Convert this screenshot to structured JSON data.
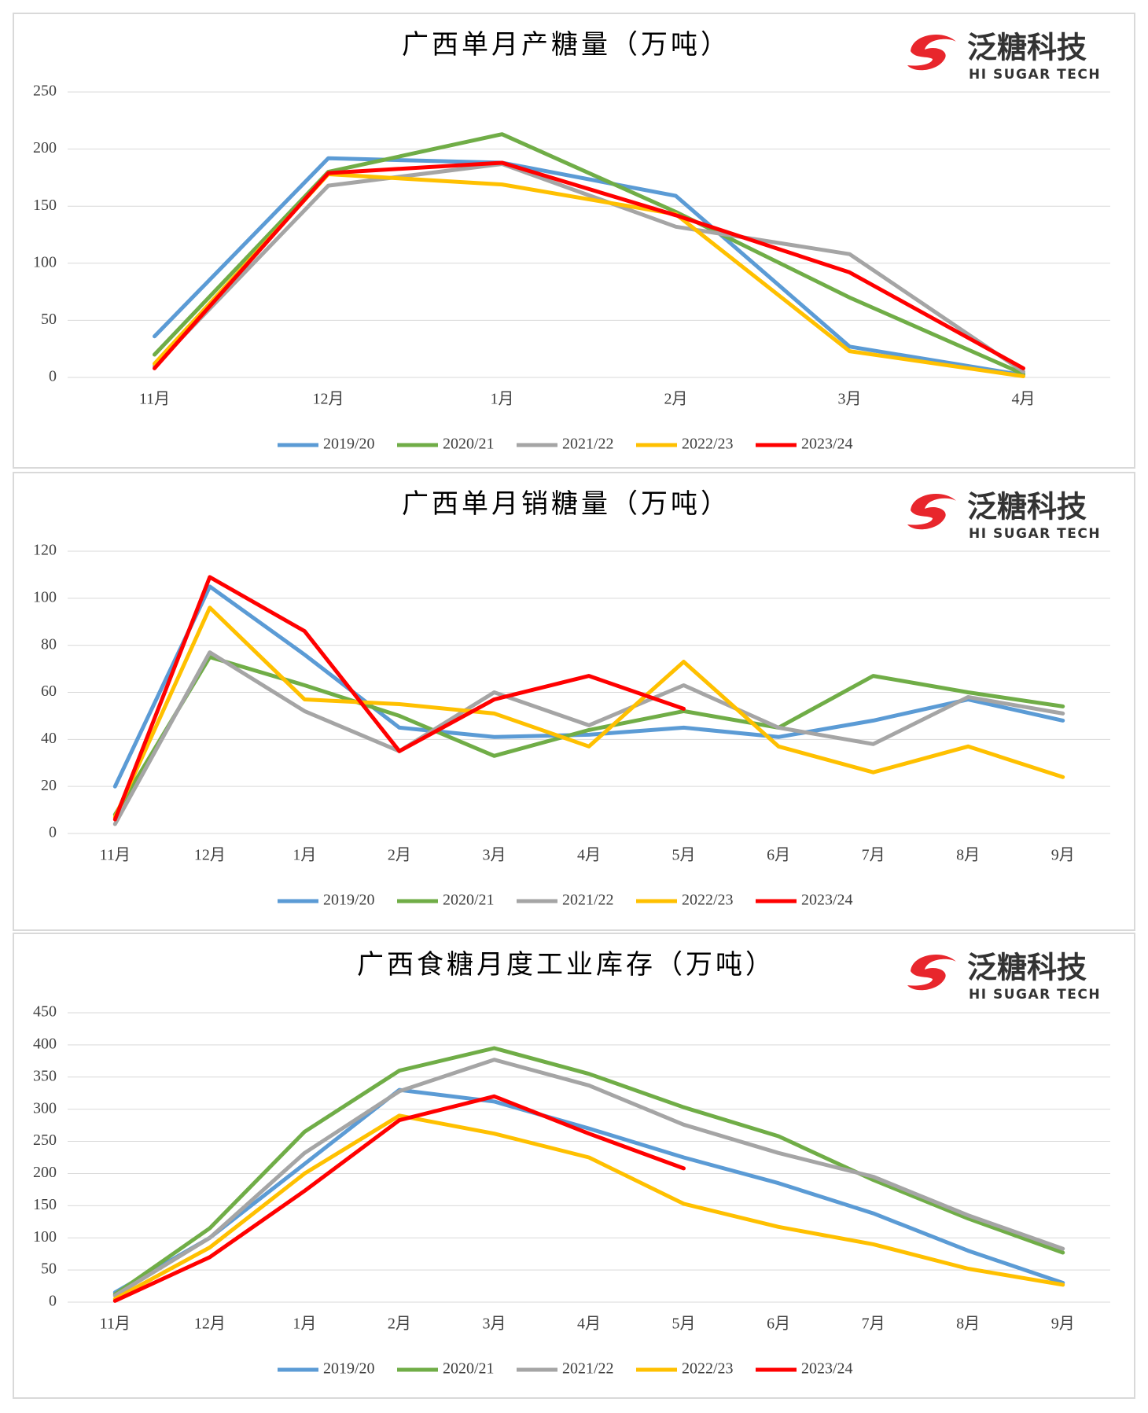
{
  "chart_data": [
    {
      "type": "line",
      "title": "广西单月产糖量（万吨）",
      "logo_text": "泛糖科技",
      "logo_subtext": "HI SUGAR TECH",
      "categories": [
        "11月",
        "12月",
        "1月",
        "2月",
        "3月",
        "4月"
      ],
      "ylim": [
        0,
        250
      ],
      "yticks": [
        0,
        50,
        100,
        150,
        200,
        250
      ],
      "grid": true,
      "legend": "bottom",
      "series": [
        {
          "name": "2019/20",
          "color": "#5b9bd5",
          "values": [
            36,
            192,
            188,
            159,
            27,
            2
          ]
        },
        {
          "name": "2020/21",
          "color": "#70ad47",
          "values": [
            20,
            180,
            213,
            145,
            70,
            3
          ]
        },
        {
          "name": "2021/22",
          "color": "#a5a5a5",
          "values": [
            10,
            168,
            187,
            132,
            108,
            5
          ]
        },
        {
          "name": "2022/23",
          "color": "#ffc000",
          "values": [
            12,
            178,
            169,
            143,
            23,
            1
          ]
        },
        {
          "name": "2023/24",
          "color": "#ff0000",
          "values": [
            8,
            179,
            188,
            142,
            92,
            8
          ]
        }
      ]
    },
    {
      "type": "line",
      "title": "广西单月销糖量（万吨）",
      "logo_text": "泛糖科技",
      "logo_subtext": "HI SUGAR TECH",
      "categories": [
        "11月",
        "12月",
        "1月",
        "2月",
        "3月",
        "4月",
        "5月",
        "6月",
        "7月",
        "8月",
        "9月"
      ],
      "ylim": [
        0,
        120
      ],
      "yticks": [
        0,
        20,
        40,
        60,
        80,
        100,
        120
      ],
      "grid": true,
      "legend": "bottom",
      "series": [
        {
          "name": "2019/20",
          "color": "#5b9bd5",
          "values": [
            20,
            105,
            76,
            45,
            41,
            42,
            45,
            41,
            48,
            57,
            48
          ]
        },
        {
          "name": "2020/21",
          "color": "#70ad47",
          "values": [
            8,
            75,
            63,
            50,
            33,
            44,
            52,
            45,
            67,
            60,
            54
          ]
        },
        {
          "name": "2021/22",
          "color": "#a5a5a5",
          "values": [
            4,
            77,
            52,
            35,
            60,
            46,
            63,
            45,
            38,
            58,
            51
          ]
        },
        {
          "name": "2022/23",
          "color": "#ffc000",
          "values": [
            7,
            96,
            57,
            55,
            51,
            37,
            73,
            37,
            26,
            37,
            24
          ]
        },
        {
          "name": "2023/24",
          "color": "#ff0000",
          "values": [
            6,
            109,
            86,
            35,
            57,
            67,
            53,
            null,
            null,
            null,
            null
          ]
        }
      ]
    },
    {
      "type": "line",
      "title": "广西食糖月度工业库存（万吨）",
      "logo_text": "泛糖科技",
      "logo_subtext": "HI SUGAR TECH",
      "categories": [
        "11月",
        "12月",
        "1月",
        "2月",
        "3月",
        "4月",
        "5月",
        "6月",
        "7月",
        "8月",
        "9月"
      ],
      "ylim": [
        0,
        450
      ],
      "yticks": [
        0,
        50,
        100,
        150,
        200,
        250,
        300,
        350,
        400,
        450
      ],
      "grid": true,
      "legend": "bottom",
      "series": [
        {
          "name": "2019/20",
          "color": "#5b9bd5",
          "values": [
            15,
            100,
            215,
            330,
            312,
            270,
            225,
            185,
            138,
            80,
            30
          ]
        },
        {
          "name": "2020/21",
          "color": "#70ad47",
          "values": [
            12,
            115,
            265,
            360,
            395,
            355,
            303,
            258,
            190,
            130,
            77
          ]
        },
        {
          "name": "2021/22",
          "color": "#a5a5a5",
          "values": [
            10,
            100,
            232,
            328,
            377,
            337,
            276,
            232,
            195,
            135,
            83
          ]
        },
        {
          "name": "2022/23",
          "color": "#ffc000",
          "values": [
            5,
            85,
            200,
            290,
            262,
            225,
            153,
            117,
            90,
            52,
            27
          ]
        },
        {
          "name": "2023/24",
          "color": "#ff0000",
          "values": [
            2,
            70,
            173,
            283,
            320,
            262,
            208,
            null,
            null,
            null,
            null
          ]
        }
      ]
    }
  ]
}
